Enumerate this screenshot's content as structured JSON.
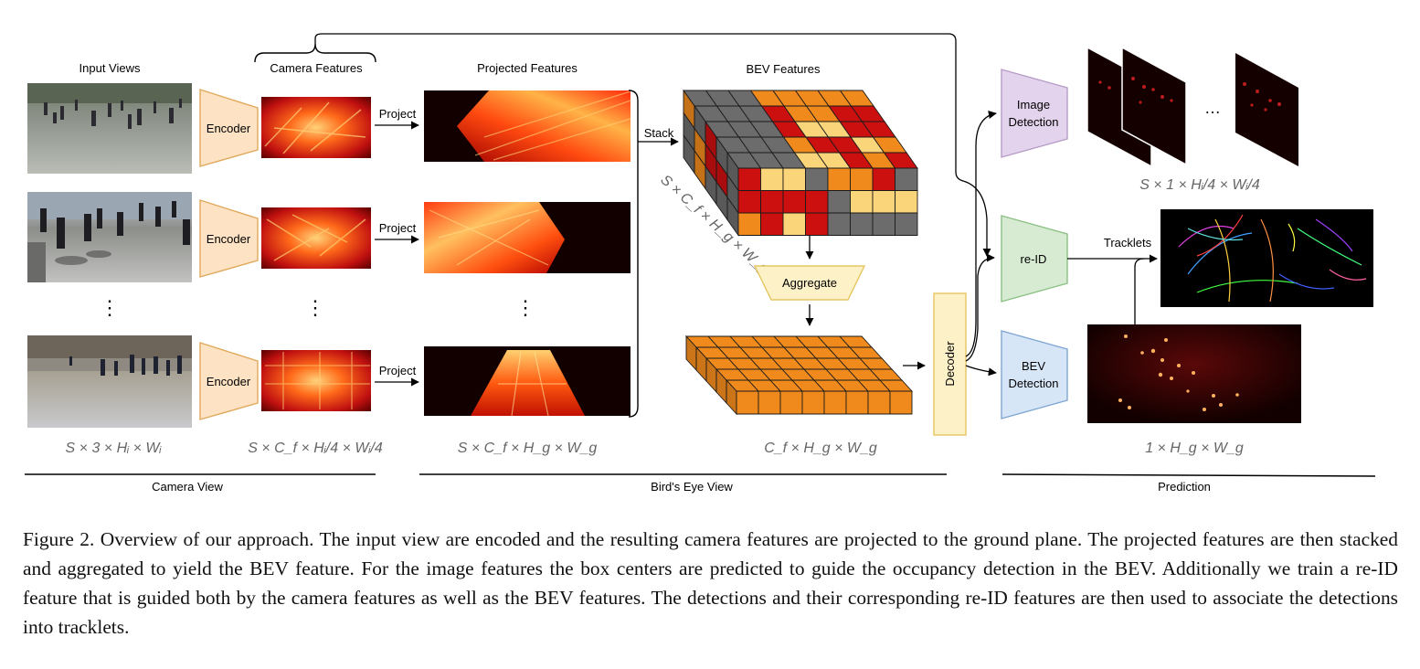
{
  "labels": {
    "input_views": "Input Views",
    "camera_features": "Camera Features",
    "projected_features": "Projected Features",
    "bev_features": "BEV Features",
    "encoder": "Encoder",
    "project": "Project",
    "stack": "Stack",
    "aggregate": "Aggregate",
    "decoder": "Decoder",
    "image_detection_l1": "Image",
    "image_detection_l2": "Detection",
    "reid": "re-ID",
    "bev_detection_l1": "BEV",
    "bev_detection_l2": "Detection",
    "tracklets": "Tracklets",
    "vdots": "⋮",
    "hdots": "…"
  },
  "math": {
    "input_dims": "S × 3 × Hᵢ × Wᵢ",
    "camera_dims": "S × C_f × Hᵢ/4 × Wᵢ/4",
    "projected_dims": "S × C_f × H_g × W_g",
    "stack_dims": "S × C_f × H_g × W_g",
    "bev_dims": "C_f × H_g × W_g",
    "image_det_dims": "S × 1 × Hᵢ/4 × Wᵢ/4",
    "bev_det_dims": "1 × H_g × W_g"
  },
  "sections": {
    "camera_view": "Camera View",
    "birds_eye_view": "Bird's Eye View",
    "prediction": "Prediction"
  },
  "caption": "Figure 2. Overview of our approach. The input view are encoded and the resulting camera features are projected to the ground plane. The projected features are then stacked and aggregated to yield the BEV feature. For the image features the box centers are predicted to guide the occupancy detection in the BEV. Additionally we train a re-ID feature that is guided both by the camera features as well as the BEV features. The detections and their corresponding re-ID features are then used to associate the detections into tracklets.",
  "colors": {
    "encoder_fill": "#fde3c4",
    "encoder_stroke": "#e0a85a",
    "decoder_fill": "#fdf1c8",
    "decoder_stroke": "#e6c560",
    "image_det_fill": "#e3d3ec",
    "image_det_stroke": "#b79cc8",
    "reid_fill": "#d6ebd2",
    "reid_stroke": "#8cc084",
    "bev_det_fill": "#d7e6f7",
    "bev_det_stroke": "#7fa6d2",
    "cube_orange": "#f08a1c",
    "cube_red": "#cc1010",
    "cube_yellow": "#fbd57a",
    "cube_gray": "#6c6c6c"
  }
}
